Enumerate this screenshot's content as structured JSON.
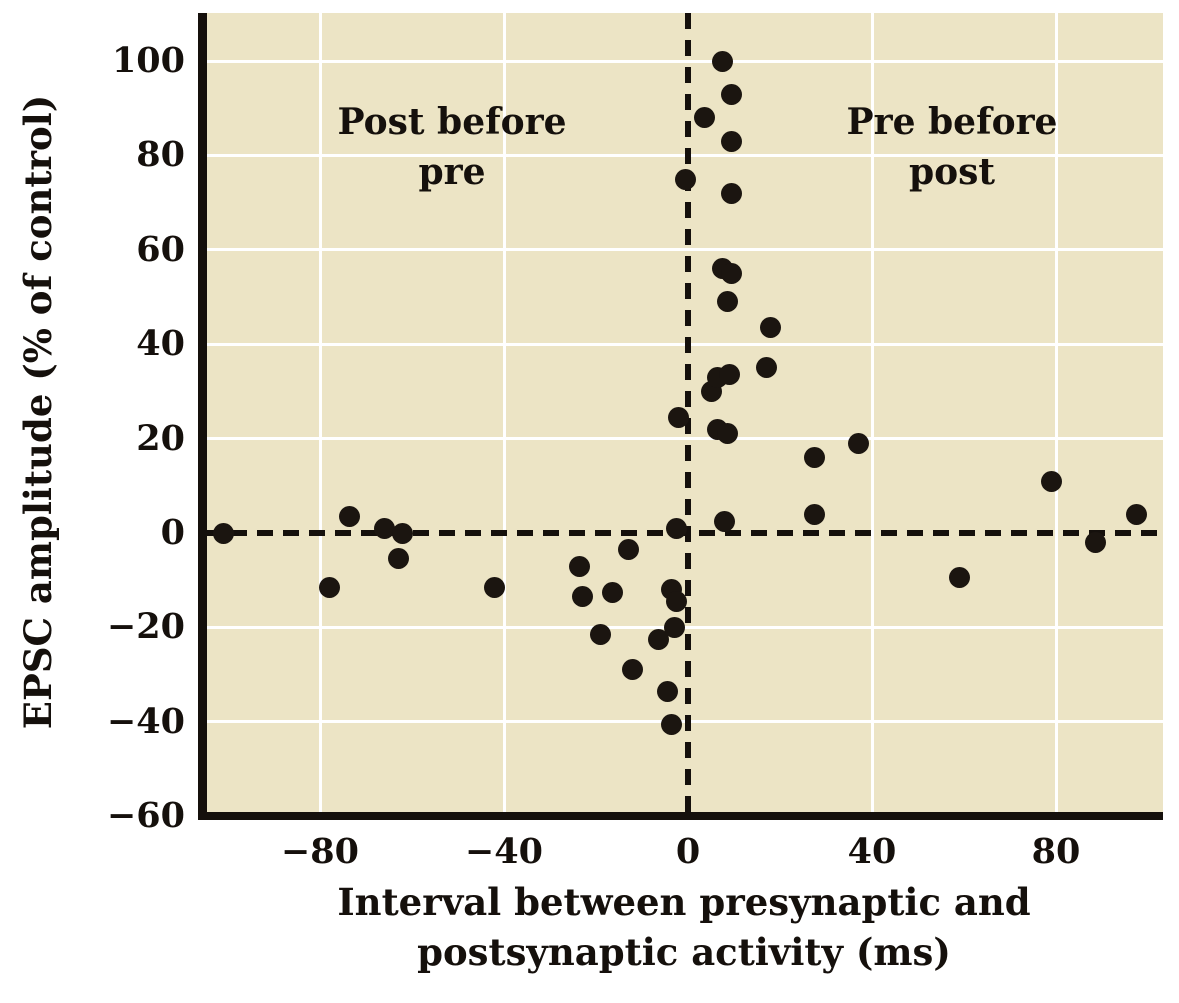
{
  "chart_data": {
    "type": "scatter",
    "title": "",
    "xlabel": "Interval between presynaptic and postsynaptic activity (ms)",
    "xlabel_lines": [
      "Interval between presynaptic and",
      "postsynaptic activity (ms)"
    ],
    "ylabel": "EPSC amplitude (% of control)",
    "xlim": [
      -105,
      103
    ],
    "ylim": [
      -60,
      110
    ],
    "x_ticks": [
      -80,
      -40,
      0,
      40,
      80
    ],
    "x_tick_labels": [
      "−80",
      "−40",
      "0",
      "40",
      "80"
    ],
    "y_ticks": [
      100,
      80,
      60,
      40,
      20,
      0,
      -20,
      -40,
      -60
    ],
    "y_tick_labels": [
      "100",
      "80",
      "60",
      "40",
      "20",
      "0",
      "−20",
      "−40",
      "−60"
    ],
    "grid": true,
    "legend": false,
    "reference_lines": [
      {
        "axis": "x",
        "value": 0,
        "style": "dashed"
      },
      {
        "axis": "y",
        "value": 0,
        "style": "dashed"
      }
    ],
    "annotations": [
      {
        "lines": [
          "Post before",
          "pre"
        ],
        "region": "negative-interval-quadrant"
      },
      {
        "lines": [
          "Pre before",
          "post"
        ],
        "region": "positive-interval-quadrant"
      }
    ],
    "series": [
      {
        "name": "synaptic-modification-data",
        "marker": "filled-circle",
        "points": [
          [
            -101,
            0
          ],
          [
            -78,
            -11.5
          ],
          [
            -73.5,
            3.5
          ],
          [
            -66,
            1
          ],
          [
            -62,
            0
          ],
          [
            -63,
            -5.5
          ],
          [
            -42,
            -11.5
          ],
          [
            -23.5,
            -7
          ],
          [
            -23,
            -13.5
          ],
          [
            -19,
            -21.5
          ],
          [
            -16.5,
            -12.5
          ],
          [
            -13,
            -3.5
          ],
          [
            -12,
            -29
          ],
          [
            -6.5,
            -22.5
          ],
          [
            -4.5,
            -33.5
          ],
          [
            -3.5,
            -40.5
          ],
          [
            -3.5,
            -12
          ],
          [
            -3,
            -20
          ],
          [
            -2.5,
            -14.5
          ],
          [
            -2.5,
            1
          ],
          [
            -2,
            24.5
          ],
          [
            -0.5,
            75
          ],
          [
            3.5,
            88
          ],
          [
            5,
            30
          ],
          [
            6.5,
            22
          ],
          [
            6.5,
            33
          ],
          [
            7.5,
            56
          ],
          [
            7.5,
            100
          ],
          [
            8,
            2.5
          ],
          [
            8.5,
            21
          ],
          [
            8.5,
            49
          ],
          [
            9,
            33.5
          ],
          [
            9.5,
            55
          ],
          [
            9.5,
            72
          ],
          [
            9.5,
            83
          ],
          [
            9.5,
            93
          ],
          [
            17,
            35
          ],
          [
            18,
            43.5
          ],
          [
            27.5,
            4
          ],
          [
            27.5,
            16
          ],
          [
            37,
            19
          ],
          [
            59,
            -9.5
          ],
          [
            79,
            11
          ],
          [
            88.5,
            -2
          ],
          [
            97.5,
            4
          ]
        ]
      }
    ],
    "colors": {
      "plot_background": "#ece4c5",
      "grid": "#ffffff",
      "axis": "#15100c",
      "marker": "#1b1510",
      "page_background": "#ffffff"
    }
  }
}
